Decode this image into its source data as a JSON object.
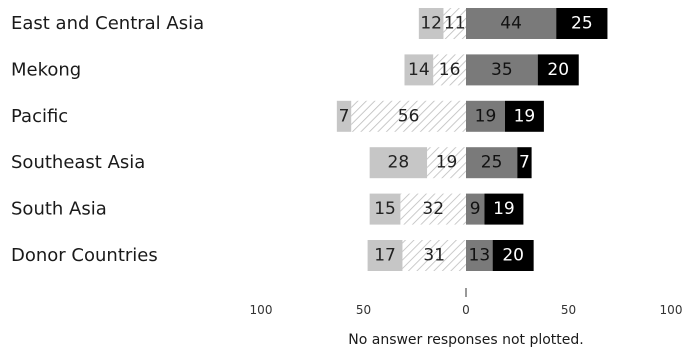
{
  "chart_data": {
    "type": "bar",
    "orientation": "horizontal",
    "stacking": "diverging",
    "categories": [
      "East and Central Asia",
      "Mekong",
      "Pacific",
      "Southeast Asia",
      "South Asia",
      "Donor Countries"
    ],
    "series": [
      {
        "side": "negative",
        "values": [
          11,
          16,
          56,
          19,
          32,
          31
        ],
        "color": "#ffffff",
        "pattern": "diagonal-hatch",
        "text_color": "#222222"
      },
      {
        "side": "negative",
        "values": [
          12,
          14,
          7,
          28,
          15,
          17
        ],
        "color": "#c6c6c6",
        "text_color": "#222222"
      },
      {
        "side": "positive",
        "values": [
          44,
          35,
          19,
          25,
          9,
          13
        ],
        "color": "#7a7a7a",
        "text_color": "#111111"
      },
      {
        "side": "positive",
        "values": [
          25,
          20,
          19,
          7,
          19,
          20
        ],
        "color": "#000000",
        "text_color": "#ffffff"
      }
    ],
    "x_ticks": [
      "100",
      "50",
      "0",
      "50",
      "100"
    ],
    "xlim": [
      -100,
      100
    ],
    "note": "No answer responses not plotted."
  }
}
